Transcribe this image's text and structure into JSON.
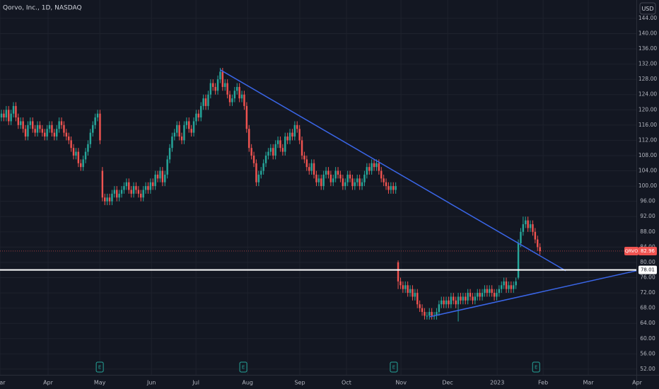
{
  "chart_data": {
    "type": "candlestick",
    "title": "Qorvo, Inc., 1D, NASDAQ",
    "currency": "USD",
    "grid": true,
    "xlim": [
      -0.6,
      264.1
    ],
    "ylim": [
      50.5,
      148.8
    ],
    "xticks": [
      {
        "value": -0.6,
        "label": "Mar"
      },
      {
        "value": 19.4,
        "label": "Apr"
      },
      {
        "value": 40.9,
        "label": "May"
      },
      {
        "value": 62.4,
        "label": "Jun"
      },
      {
        "value": 80.9,
        "label": "Jul"
      },
      {
        "value": 102.4,
        "label": "Aug"
      },
      {
        "value": 124.1,
        "label": "Sep"
      },
      {
        "value": 143.5,
        "label": "Oct"
      },
      {
        "value": 166.2,
        "label": "Nov"
      },
      {
        "value": 185.6,
        "label": "Dec"
      },
      {
        "value": 206.2,
        "label": "2023"
      },
      {
        "value": 225.3,
        "label": "Feb"
      },
      {
        "value": 244.1,
        "label": "Mar"
      },
      {
        "value": 264.4,
        "label": "Apr"
      }
    ],
    "yticks": [
      {
        "value": 52,
        "label": "52.00"
      },
      {
        "value": 56,
        "label": "56.00"
      },
      {
        "value": 60,
        "label": "60.00"
      },
      {
        "value": 64,
        "label": "64.00"
      },
      {
        "value": 68,
        "label": "68.00"
      },
      {
        "value": 72,
        "label": "72.00"
      },
      {
        "value": 76,
        "label": "76.00"
      },
      {
        "value": 80,
        "label": "80.00"
      },
      {
        "value": 84,
        "label": "84.00"
      },
      {
        "value": 88,
        "label": "88.00"
      },
      {
        "value": 92,
        "label": "92.00"
      },
      {
        "value": 96,
        "label": "96.00"
      },
      {
        "value": 100,
        "label": "100.00"
      },
      {
        "value": 104,
        "label": "104.00"
      },
      {
        "value": 108,
        "label": "108.00"
      },
      {
        "value": 112,
        "label": "112.00"
      },
      {
        "value": 116,
        "label": "116.00"
      },
      {
        "value": 120,
        "label": "120.00"
      },
      {
        "value": 124,
        "label": "124.00"
      },
      {
        "value": 128,
        "label": "128.00"
      },
      {
        "value": 132,
        "label": "132.00"
      },
      {
        "value": 136,
        "label": "136.00"
      },
      {
        "value": 140,
        "label": "140.00"
      },
      {
        "value": 144,
        "label": "144.00"
      }
    ],
    "series": [
      {
        "name": "QRVO",
        "up_color": "#26a69a",
        "down_color": "#ef5350",
        "open": [
          118,
          119,
          118,
          120,
          117,
          119,
          121,
          118,
          116,
          117,
          115,
          113,
          116,
          117,
          115,
          114,
          116,
          115,
          114,
          113,
          115,
          116,
          114,
          113,
          115,
          117,
          116,
          114,
          113,
          112,
          110,
          108,
          109,
          106,
          105,
          107,
          109,
          111,
          114,
          116,
          118,
          119,
          104,
          97,
          96,
          97,
          96,
          98,
          99,
          97,
          98,
          99,
          100,
          101,
          99,
          98,
          100,
          99,
          98,
          97,
          99,
          100,
          99,
          101,
          100,
          103,
          102,
          104,
          101,
          103,
          107,
          110,
          113,
          114,
          116,
          113,
          112,
          116,
          117,
          115,
          114,
          117,
          119,
          118,
          121,
          123,
          121,
          124,
          127,
          126,
          125,
          128,
          130,
          126,
          127,
          124,
          122,
          123,
          125,
          126,
          123,
          124,
          121,
          115,
          110,
          108,
          106,
          101,
          103,
          104,
          106,
          108,
          109,
          110,
          108,
          111,
          112,
          110,
          109,
          113,
          112,
          114,
          113,
          116,
          115,
          112,
          108,
          107,
          105,
          104,
          106,
          103,
          101,
          102,
          100,
          103,
          104,
          103,
          101,
          102,
          104,
          103,
          102,
          100,
          101,
          103,
          102,
          100,
          101,
          102,
          100,
          101,
          103,
          105,
          104,
          106,
          105,
          106,
          104,
          102,
          101,
          100,
          99,
          100,
          99,
          80,
          75,
          74,
          73,
          74,
          72,
          73,
          71,
          72,
          69,
          68,
          67,
          66,
          66,
          67,
          66,
          66,
          67,
          69,
          70,
          69,
          70,
          69,
          71,
          70,
          69,
          71,
          70,
          71,
          70,
          72,
          71,
          70,
          71,
          72,
          71,
          72,
          73,
          72,
          73,
          72,
          71,
          72,
          73,
          74,
          75,
          73,
          74,
          73,
          74,
          76,
          85,
          88,
          90,
          91,
          89,
          90,
          88,
          86,
          84
        ],
        "high": [
          120,
          120,
          121,
          121,
          120,
          122,
          122,
          119,
          118,
          118,
          116,
          117,
          118,
          118,
          116,
          117,
          117,
          116,
          115,
          116,
          117,
          117,
          115,
          116,
          118,
          118,
          117,
          115,
          114,
          113,
          111,
          110,
          110,
          107,
          108,
          110,
          112,
          115,
          117,
          119,
          120,
          120,
          105,
          98,
          98,
          98,
          99,
          100,
          100,
          99,
          100,
          101,
          102,
          102,
          100,
          101,
          101,
          100,
          99,
          100,
          101,
          101,
          102,
          102,
          104,
          104,
          105,
          105,
          104,
          108,
          111,
          114,
          115,
          117,
          117,
          114,
          117,
          118,
          118,
          116,
          118,
          120,
          120,
          122,
          124,
          124,
          125,
          128,
          128,
          127,
          129,
          131,
          131,
          128,
          128,
          125,
          124,
          126,
          127,
          127,
          125,
          125,
          122,
          116,
          111,
          109,
          107,
          104,
          105,
          107,
          109,
          110,
          111,
          111,
          112,
          113,
          113,
          111,
          114,
          114,
          115,
          115,
          117,
          117,
          116,
          113,
          109,
          108,
          106,
          107,
          107,
          104,
          103,
          103,
          104,
          105,
          105,
          104,
          103,
          105,
          105,
          104,
          103,
          102,
          104,
          104,
          103,
          102,
          103,
          103,
          102,
          104,
          106,
          106,
          107,
          107,
          107,
          107,
          105,
          103,
          102,
          101,
          101,
          101,
          101,
          80.5,
          76,
          75,
          75,
          75,
          74,
          74,
          73,
          73,
          70,
          69,
          68,
          67,
          68,
          68,
          67,
          68,
          70,
          71,
          71,
          71,
          71,
          72,
          72,
          71,
          72,
          72,
          72,
          72,
          73,
          73,
          72,
          72,
          73,
          73,
          73,
          74,
          74,
          74,
          74,
          73,
          73,
          74,
          75,
          76,
          76,
          75,
          75,
          75,
          76,
          86,
          89,
          92,
          92,
          92,
          91,
          91,
          89,
          87,
          85
        ],
        "low": [
          117,
          117,
          117,
          116,
          116,
          118,
          117,
          115,
          115,
          114,
          112,
          112,
          115,
          114,
          113,
          113,
          114,
          113,
          112,
          112,
          114,
          113,
          112,
          112,
          114,
          115,
          113,
          112,
          111,
          109,
          107,
          107,
          105,
          104,
          104,
          106,
          108,
          110,
          113,
          115,
          117,
          111,
          96,
          95,
          95,
          95,
          95,
          97,
          96,
          96,
          97,
          98,
          99,
          98,
          97,
          97,
          98,
          97,
          96,
          96,
          98,
          98,
          98,
          99,
          99,
          101,
          101,
          100,
          100,
          102,
          106,
          109,
          112,
          113,
          112,
          111,
          111,
          115,
          114,
          113,
          113,
          116,
          117,
          117,
          120,
          120,
          120,
          123,
          125,
          124,
          124,
          127,
          125,
          125,
          123,
          121,
          121,
          122,
          124,
          122,
          122,
          120,
          114,
          109,
          107,
          105,
          100,
          100,
          102,
          103,
          105,
          107,
          108,
          107,
          107,
          110,
          109,
          108,
          108,
          111,
          111,
          112,
          112,
          114,
          111,
          107,
          106,
          104,
          103,
          103,
          102,
          100,
          100,
          99,
          99,
          102,
          102,
          100,
          100,
          101,
          102,
          101,
          99,
          99,
          100,
          101,
          99,
          99,
          100,
          99,
          99,
          100,
          102,
          103,
          103,
          104,
          104,
          103,
          101,
          100,
          99,
          98,
          98,
          98,
          98,
          73,
          73,
          72,
          72,
          71,
          71,
          70,
          70,
          68,
          67,
          66,
          65,
          65,
          65,
          65,
          65,
          65,
          66,
          68,
          68,
          68,
          68,
          68,
          69,
          68,
          64.5,
          69,
          69,
          69,
          69,
          70,
          69,
          69,
          70,
          70,
          70,
          71,
          71,
          71,
          71,
          70,
          70,
          71,
          72,
          73,
          72,
          72,
          72,
          72,
          73,
          75.5,
          84,
          87,
          89,
          88,
          88,
          87,
          85,
          83,
          82
        ],
        "close": [
          119,
          118,
          120,
          117,
          119,
          121,
          118,
          116,
          117,
          115,
          113,
          116,
          117,
          115,
          114,
          116,
          115,
          114,
          113,
          115,
          116,
          114,
          113,
          115,
          117,
          116,
          114,
          113,
          112,
          110,
          108,
          109,
          106,
          105,
          107,
          109,
          111,
          114,
          116,
          118,
          119,
          112,
          97,
          96,
          97,
          96,
          98,
          99,
          97,
          98,
          99,
          100,
          101,
          99,
          98,
          100,
          99,
          98,
          97,
          99,
          100,
          99,
          101,
          100,
          103,
          102,
          104,
          101,
          103,
          107,
          110,
          113,
          114,
          116,
          113,
          112,
          116,
          117,
          115,
          114,
          117,
          119,
          118,
          121,
          123,
          121,
          124,
          127,
          126,
          125,
          128,
          130,
          126,
          127,
          124,
          122,
          123,
          125,
          126,
          123,
          124,
          121,
          115,
          110,
          108,
          106,
          101,
          103,
          104,
          106,
          108,
          109,
          110,
          108,
          111,
          112,
          110,
          109,
          113,
          112,
          114,
          113,
          116,
          115,
          112,
          108,
          107,
          105,
          104,
          106,
          103,
          101,
          102,
          100,
          103,
          104,
          103,
          101,
          102,
          104,
          103,
          102,
          100,
          101,
          103,
          102,
          100,
          101,
          102,
          100,
          101,
          103,
          105,
          104,
          106,
          105,
          106,
          104,
          102,
          101,
          100,
          99,
          100,
          99,
          100,
          75,
          74,
          73,
          74,
          72,
          73,
          71,
          72,
          69,
          68,
          67,
          66,
          66,
          67,
          66,
          66,
          67,
          69,
          70,
          69,
          70,
          69,
          71,
          70,
          69,
          71,
          70,
          71,
          70,
          72,
          71,
          70,
          71,
          72,
          71,
          72,
          73,
          72,
          73,
          72,
          71,
          72,
          73,
          74,
          75,
          73,
          74,
          73,
          74,
          75,
          85,
          88,
          90,
          91,
          89,
          90,
          88,
          86,
          84,
          82.96
        ]
      }
    ],
    "hlines": [
      {
        "value": 78.01,
        "color": "#ffffff"
      }
    ],
    "trendlines": [
      {
        "x": [
          91,
          234.7
        ],
        "y": [
          130.5,
          77.8
        ],
        "color": "#3a66e8"
      },
      {
        "x": [
          177.9,
          264.1
        ],
        "y": [
          65.7,
          77.8
        ],
        "color": "#3a66e8"
      }
    ],
    "events": [
      {
        "x": 40.9,
        "label": "E"
      },
      {
        "x": 100.6,
        "label": "E"
      },
      {
        "x": 163.2,
        "label": "E"
      },
      {
        "x": 222.4,
        "label": "E"
      }
    ]
  }
}
